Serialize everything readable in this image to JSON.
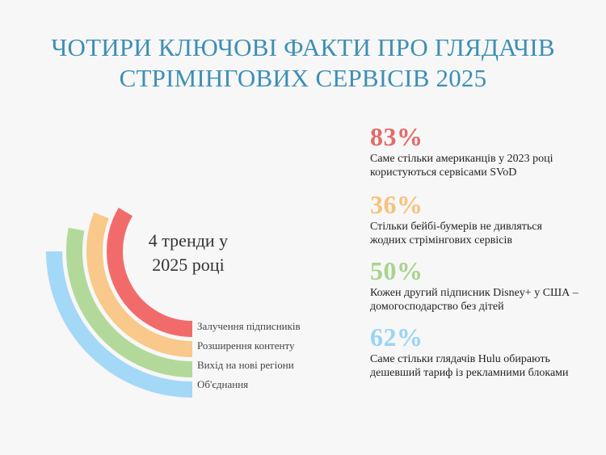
{
  "title": {
    "line1": "ЧОТИРИ КЛЮЧОВІ ФАКТИ ПРО ГЛЯДАЧІВ",
    "line2": "СТРІМІНГОВИХ СЕРВІСІВ 2025"
  },
  "chart_data": {
    "type": "radial-bar",
    "center_label": [
      "4 тренди у",
      "2025 році"
    ],
    "series": [
      {
        "name": "Залучення підписників",
        "color": "#f26b6b"
      },
      {
        "name": "Розширення контенту",
        "color": "#f8c98a"
      },
      {
        "name": "Вихід на нові регіони",
        "color": "#b2d99a"
      },
      {
        "name": "Об'єднання",
        "color": "#a3d8f7"
      }
    ]
  },
  "facts": [
    {
      "value": "83%",
      "text": "Саме стільки американців у 2023 році користуються сервісами SVoD",
      "color": "#e46a6a"
    },
    {
      "value": "36%",
      "text": "Стільки бейбі-бумерів не дивляться жодних стрімінгових сервісів",
      "color": "#f6c27e"
    },
    {
      "value": "50%",
      "text": "Кожен другий підписник Disney+ у США – домогосподарство без дітей",
      "color": "#a8d48f"
    },
    {
      "value": "62%",
      "text": "Саме стільки глядачів Hulu обирають дешевший тариф із рекламними блоками",
      "color": "#9ad4f5"
    }
  ]
}
